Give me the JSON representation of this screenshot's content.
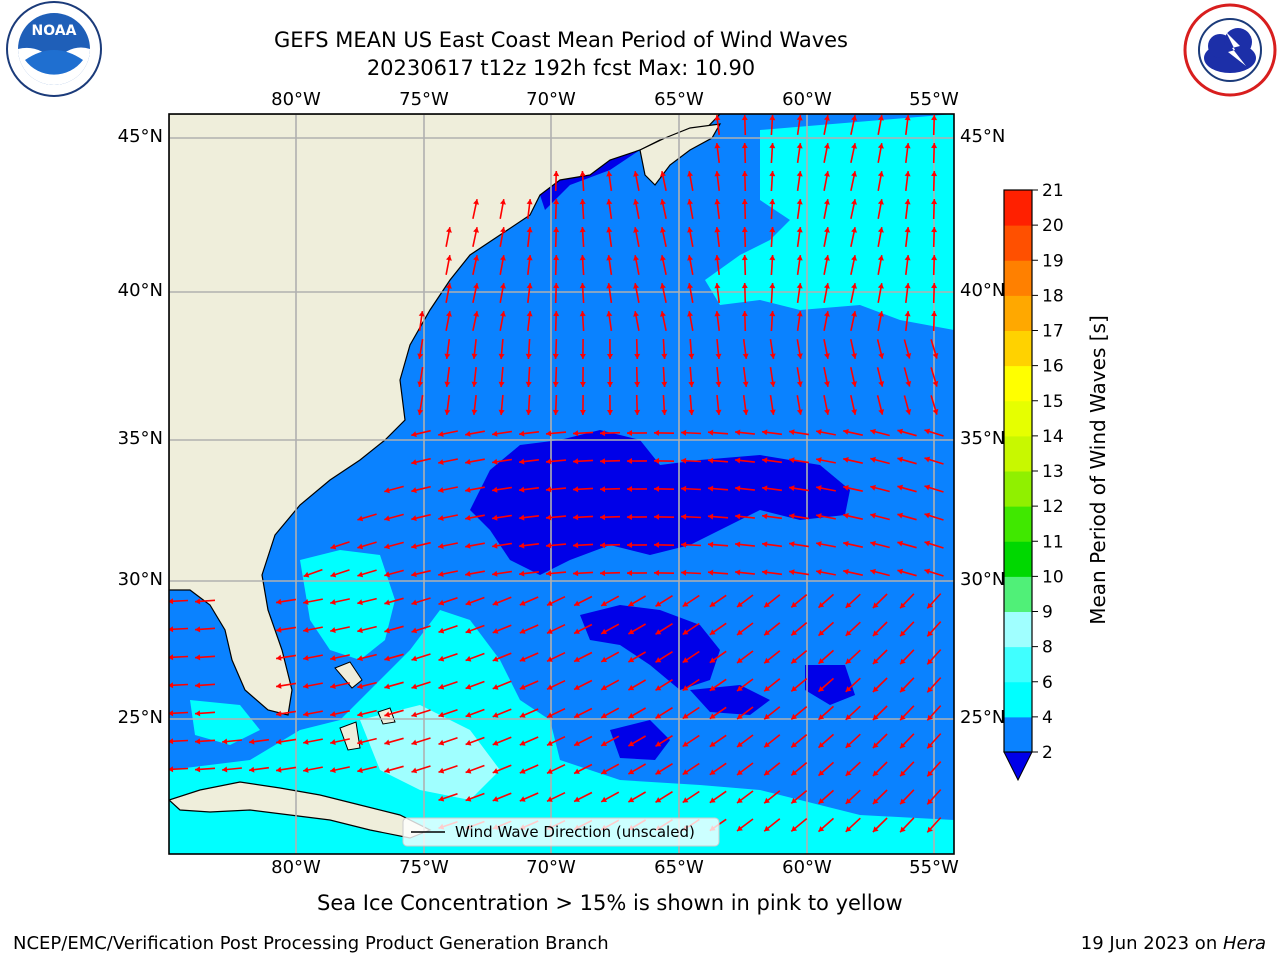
{
  "header": {
    "title_line1": "GEFS MEAN US East Coast Mean Period of Wind Waves",
    "title_line2": "20230617 t12z 192h fcst   Max: 10.90"
  },
  "logos": {
    "left": {
      "name": "noaa-logo",
      "text": "NOAA",
      "ring_text": "NATIONAL OCEANIC AND ATMOSPHERIC ADMINISTRATION · U.S. DEPARTMENT OF COMMERCE"
    },
    "right": {
      "name": "nws-logo",
      "ring_text": "NATIONAL WEATHER SERVICE"
    }
  },
  "map": {
    "lon_labels": [
      "80°W",
      "75°W",
      "70°W",
      "65°W",
      "60°W",
      "55°W"
    ],
    "lat_labels": [
      "45°N",
      "40°N",
      "35°N",
      "30°N",
      "25°N"
    ],
    "legend_text": "Wind Wave Direction (unscaled)",
    "colors": {
      "land": "#efeedb",
      "dark_blue": "#0000e8",
      "mid_blue": "#0a82ff",
      "cyan": "#00ffff",
      "pale_cyan": "#a0ffff",
      "arrow": "#ff0000",
      "grid": "#b0b0b0"
    }
  },
  "colorbar": {
    "label": "Mean Period of Wind Waves [s]",
    "ticks": [
      "2",
      "4",
      "6",
      "8",
      "9",
      "10",
      "11",
      "12",
      "13",
      "14",
      "15",
      "16",
      "17",
      "18",
      "19",
      "20",
      "21"
    ],
    "colors": [
      "#0a82ff",
      "#00ffff",
      "#40ffff",
      "#a0ffff",
      "#50f078",
      "#00d800",
      "#40e800",
      "#90f000",
      "#c8f800",
      "#e6ff00",
      "#ffff00",
      "#ffd200",
      "#ffa800",
      "#ff8000",
      "#ff5000",
      "#ff2000"
    ],
    "under_color": "#0000e8"
  },
  "note": "Sea Ice Concentration > 15% is shown in pink to yellow",
  "footer": {
    "left": "NCEP/EMC/Verification Post Processing Product Generation Branch",
    "right_prefix": "19 Jun 2023 on ",
    "right_host": "Hera"
  }
}
